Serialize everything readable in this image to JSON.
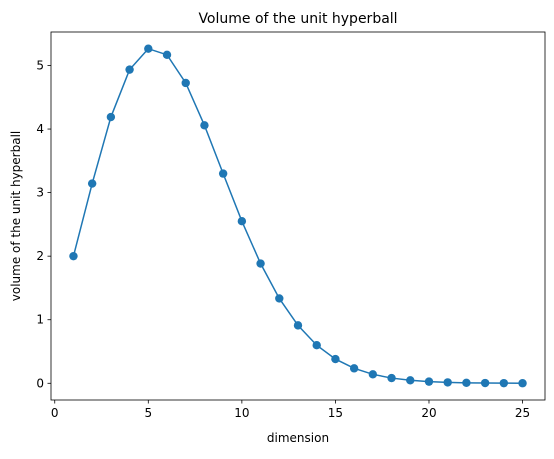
{
  "chart_data": {
    "type": "line",
    "title": "Volume of the unit hyperball",
    "xlabel": "dimension",
    "ylabel": "volume of the unit hyperball",
    "xlim": [
      -0.2,
      26.2
    ],
    "ylim": [
      -0.263,
      5.527
    ],
    "xticks": [
      0,
      5,
      10,
      15,
      20,
      25
    ],
    "xtick_labels": [
      "0",
      "5",
      "10",
      "15",
      "20",
      "25"
    ],
    "yticks": [
      0,
      1,
      2,
      3,
      4,
      5
    ],
    "ytick_labels": [
      "0",
      "1",
      "2",
      "3",
      "4",
      "5"
    ],
    "grid": false,
    "legend": false,
    "marker": "circle",
    "series": [
      {
        "color": "#1f77b4",
        "x": [
          1,
          2,
          3,
          4,
          5,
          6,
          7,
          8,
          9,
          10,
          11,
          12,
          13,
          14,
          15,
          16,
          17,
          18,
          19,
          20,
          21,
          22,
          23,
          24,
          25
        ],
        "y": [
          2.0,
          3.142,
          4.189,
          4.935,
          5.264,
          5.168,
          4.725,
          4.059,
          3.299,
          2.55,
          1.884,
          1.335,
          0.911,
          0.599,
          0.381,
          0.235,
          0.141,
          0.082,
          0.047,
          0.026,
          0.014,
          0.007,
          0.004,
          0.002,
          0.001
        ]
      }
    ]
  }
}
